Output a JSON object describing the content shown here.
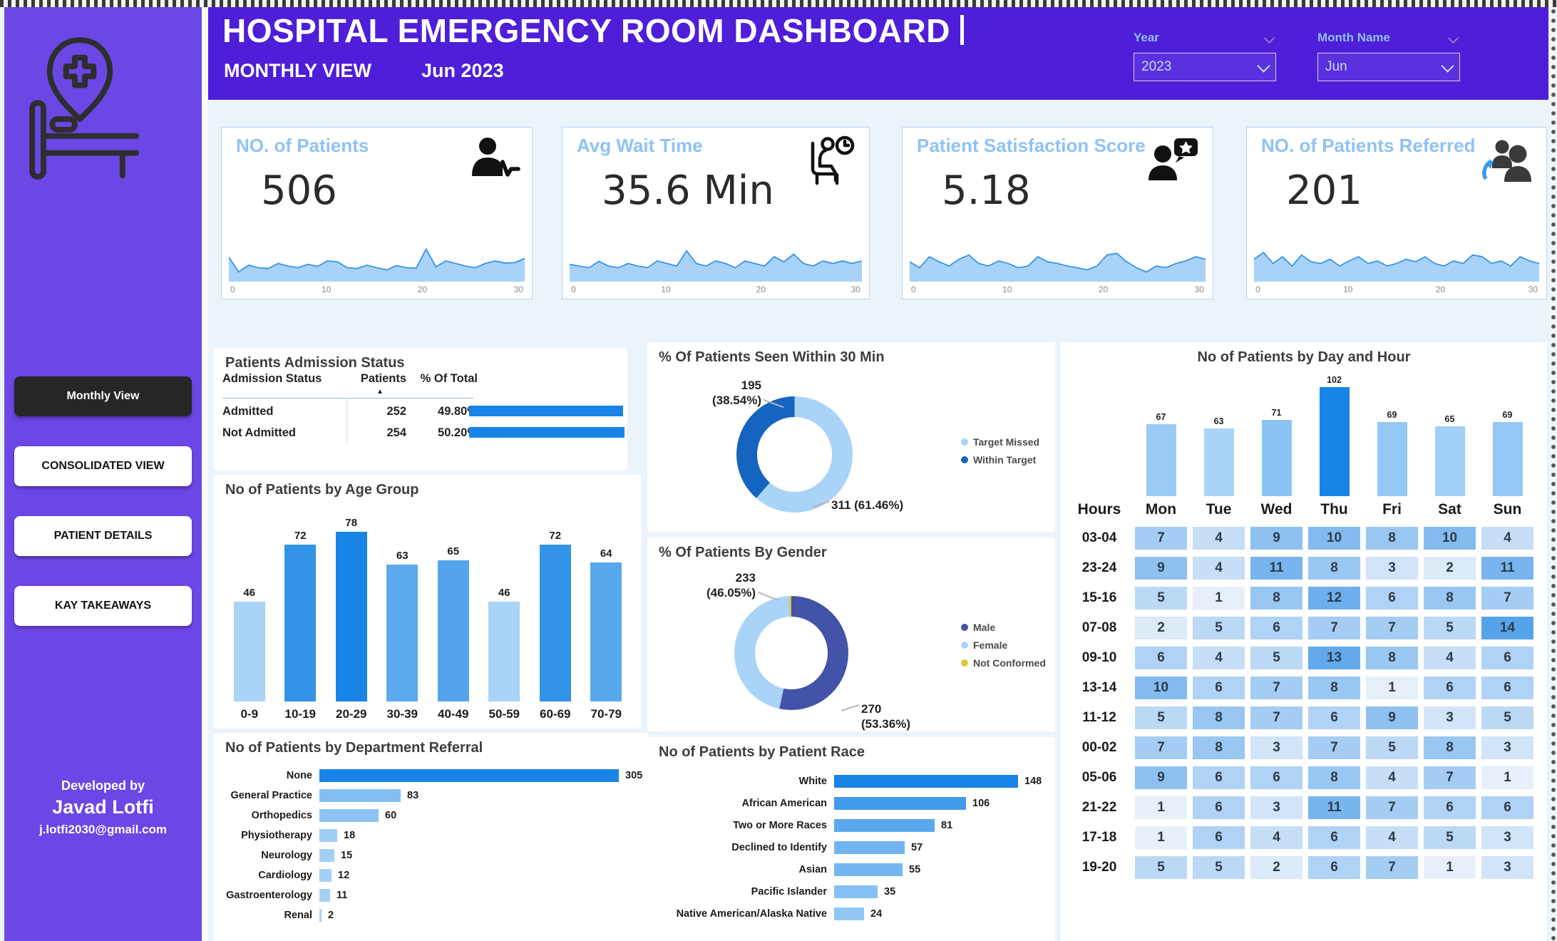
{
  "header": {
    "title": "HOSPITAL EMERGENCY ROOM DASHBOARD",
    "subtitle": "MONTHLY VIEW",
    "period": "Jun 2023",
    "slicers": {
      "year_label": "Year",
      "year_value": "2023",
      "month_label": "Month Name",
      "month_value": "Jun"
    }
  },
  "sidebar": {
    "nav": [
      {
        "label": "Monthly View",
        "active": true
      },
      {
        "label": "CONSOLIDATED VIEW",
        "active": false
      },
      {
        "label": "PATIENT DETAILS",
        "active": false
      },
      {
        "label": "KAY TAKEAWAYS",
        "active": false
      }
    ],
    "footer": {
      "line1": "Developed by",
      "line2": "Javad Lotfi",
      "line3": "j.lotfi2030@gmail.com"
    }
  },
  "kpis": [
    {
      "title": "NO. of Patients",
      "value": "506",
      "icon": "patient-pulse-icon",
      "axis_ticks": [
        "0",
        "10",
        "20",
        "30"
      ],
      "spark": [
        55,
        20,
        36,
        30,
        28,
        40,
        34,
        30,
        38,
        33,
        46,
        44,
        30,
        28,
        36,
        30,
        25,
        35,
        30,
        29,
        74,
        32,
        46,
        40,
        34,
        30,
        40,
        46,
        41,
        42,
        52
      ]
    },
    {
      "title": "Avg Wait Time",
      "value": "35.6 Min",
      "icon": "wait-time-icon",
      "axis_ticks": [
        "0",
        "10",
        "20",
        "30"
      ],
      "spark": [
        38,
        34,
        30,
        45,
        34,
        30,
        40,
        34,
        30,
        46,
        40,
        34,
        70,
        40,
        34,
        46,
        40,
        30,
        46,
        40,
        34,
        56,
        44,
        62,
        40,
        34,
        46,
        40,
        46,
        40,
        46
      ]
    },
    {
      "title": "Patient Satisfaction Score",
      "value": "5.18",
      "icon": "satisfaction-icon",
      "axis_ticks": [
        "0",
        "10",
        "20",
        "30"
      ],
      "spark": [
        44,
        30,
        56,
        44,
        34,
        50,
        60,
        40,
        34,
        46,
        40,
        30,
        34,
        56,
        44,
        40,
        34,
        30,
        25,
        34,
        60,
        64,
        44,
        30,
        20,
        34,
        30,
        40,
        46,
        56,
        50
      ]
    },
    {
      "title": "NO. of Patients Referred",
      "value": "201",
      "icon": "referred-icon",
      "axis_ticks": [
        "0",
        "10",
        "20",
        "30"
      ],
      "spark": [
        50,
        66,
        40,
        56,
        34,
        60,
        44,
        40,
        50,
        34,
        46,
        56,
        40,
        46,
        34,
        40,
        50,
        44,
        56,
        40,
        34,
        46,
        40,
        60,
        56,
        40,
        46,
        34,
        56,
        46,
        40
      ]
    }
  ],
  "colors": {
    "header_purple": "#4E1ED8",
    "sidebar_purple": "#6B47E5",
    "title_light_blue": "#8FC2F4",
    "spark_fill": "#A8D2F8",
    "spark_line": "#2F90EA",
    "ramp_light": "#A9D3F7",
    "ramp_dark": "#1884E6",
    "heat_light": "#E7F0FA",
    "heat_dark": "#57A3EA",
    "table_bar": "#1884E6",
    "male_indigo": "#4353A9",
    "female_light_blue": "#A9D3F7",
    "not_conformed_yellow": "#E0C23F",
    "within_target_blue": "#1565C0"
  },
  "chart_data": [
    {
      "id": "admission",
      "type": "table",
      "title": "Patients Admission Status",
      "columns": [
        "Admission Status",
        "Patients",
        "% Of Total"
      ],
      "sorted_by": "Patients",
      "rows": [
        {
          "status": "Admitted",
          "patients": "252",
          "pct": "49.80%",
          "pct_num": 49.8
        },
        {
          "status": "Not Admitted",
          "patients": "254",
          "pct": "50.20%",
          "pct_num": 50.2
        }
      ]
    },
    {
      "id": "age",
      "type": "bar",
      "title": "No of Patients by Age Group",
      "categories": [
        "0-9",
        "10-19",
        "20-29",
        "30-39",
        "40-49",
        "50-59",
        "60-69",
        "70-79"
      ],
      "values": [
        46,
        72,
        78,
        63,
        65,
        46,
        72,
        64
      ]
    },
    {
      "id": "dept",
      "type": "hbar",
      "title": "No of Patients by Department Referral",
      "categories": [
        "None",
        "General Practice",
        "Orthopedics",
        "Physiotherapy",
        "Neurology",
        "Cardiology",
        "Gastroenterology",
        "Renal"
      ],
      "values": [
        305,
        83,
        60,
        18,
        15,
        12,
        11,
        2
      ]
    },
    {
      "id": "seen30",
      "type": "donut",
      "title": "% Of Patients Seen Within 30 Min",
      "slices": [
        {
          "name": "Target Missed",
          "value": 311,
          "pct": 61.46,
          "color": "#A9D3F7"
        },
        {
          "name": "Within Target",
          "value": 195,
          "pct": 38.54,
          "color": "#1565C0"
        }
      ],
      "callouts": {
        "left_line1": "195",
        "left_line2": "(38.54%)",
        "bottom_line1": "311 (61.46%)",
        "bottom_line2": ""
      }
    },
    {
      "id": "gender",
      "type": "donut",
      "title": "% Of Patients By Gender",
      "slices": [
        {
          "name": "Male",
          "value": 270,
          "pct": 53.36,
          "color": "#4353A9"
        },
        {
          "name": "Female",
          "value": 233,
          "pct": 46.05,
          "color": "#A9D3F7"
        },
        {
          "name": "Not Conformed",
          "pct": 0.59,
          "color": "#E0C23F"
        }
      ],
      "callouts": {
        "left_line1": "233",
        "left_line2": "(46.05%)",
        "bottom_line1": "270",
        "bottom_line2": "(53.36%)"
      }
    },
    {
      "id": "race",
      "type": "hbar",
      "title": "No of Patients by Patient Race",
      "categories": [
        "White",
        "African American",
        "Two or More Races",
        "Declined to Identify",
        "Asian",
        "Pacific Islander",
        "Native American/Alaska Native"
      ],
      "values": [
        148,
        106,
        81,
        57,
        55,
        35,
        24
      ]
    },
    {
      "id": "dayhour",
      "type": "heatmap",
      "title": "No of Patients by Day and Hour",
      "corner_label": "Hours",
      "days": [
        "Mon",
        "Tue",
        "Wed",
        "Thu",
        "Fri",
        "Sat",
        "Sun"
      ],
      "day_totals": [
        67,
        63,
        71,
        102,
        69,
        65,
        69
      ],
      "rows": [
        {
          "hour": "03-04",
          "values": [
            7,
            4,
            9,
            10,
            8,
            10,
            4
          ]
        },
        {
          "hour": "23-24",
          "values": [
            9,
            4,
            11,
            8,
            3,
            2,
            11
          ]
        },
        {
          "hour": "15-16",
          "values": [
            5,
            1,
            8,
            12,
            6,
            8,
            7
          ]
        },
        {
          "hour": "07-08",
          "values": [
            2,
            5,
            6,
            7,
            7,
            5,
            14
          ]
        },
        {
          "hour": "09-10",
          "values": [
            6,
            4,
            5,
            13,
            8,
            4,
            6
          ]
        },
        {
          "hour": "13-14",
          "values": [
            10,
            6,
            7,
            8,
            1,
            6,
            6
          ]
        },
        {
          "hour": "11-12",
          "values": [
            5,
            8,
            7,
            6,
            9,
            3,
            5
          ]
        },
        {
          "hour": "00-02",
          "values": [
            7,
            8,
            3,
            7,
            5,
            8,
            3
          ]
        },
        {
          "hour": "05-06",
          "values": [
            9,
            6,
            6,
            8,
            4,
            7,
            1
          ]
        },
        {
          "hour": "21-22",
          "values": [
            1,
            6,
            3,
            11,
            7,
            6,
            6
          ]
        },
        {
          "hour": "17-18",
          "values": [
            1,
            6,
            4,
            6,
            4,
            5,
            3
          ]
        },
        {
          "hour": "19-20",
          "values": [
            5,
            5,
            2,
            6,
            7,
            1,
            3
          ]
        }
      ]
    }
  ]
}
